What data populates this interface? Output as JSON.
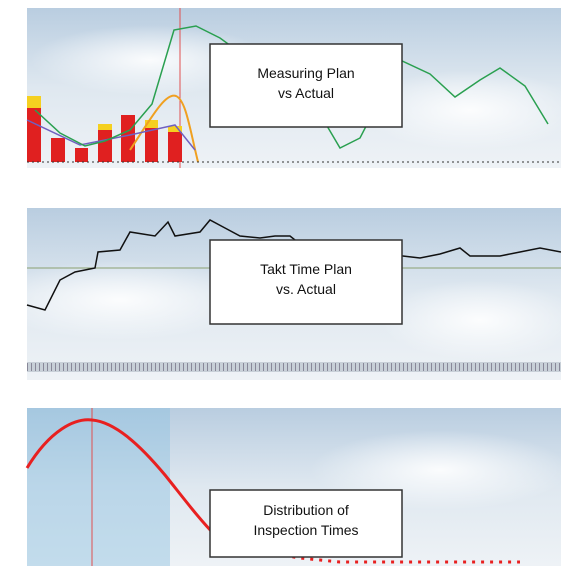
{
  "panels": [
    {
      "label_lines": [
        "Measuring Plan",
        "vs Actual"
      ]
    },
    {
      "label_lines": [
        "Takt Time Plan",
        "vs. Actual"
      ]
    },
    {
      "label_lines": [
        "Distribution of",
        "Inspection Times"
      ]
    }
  ]
}
